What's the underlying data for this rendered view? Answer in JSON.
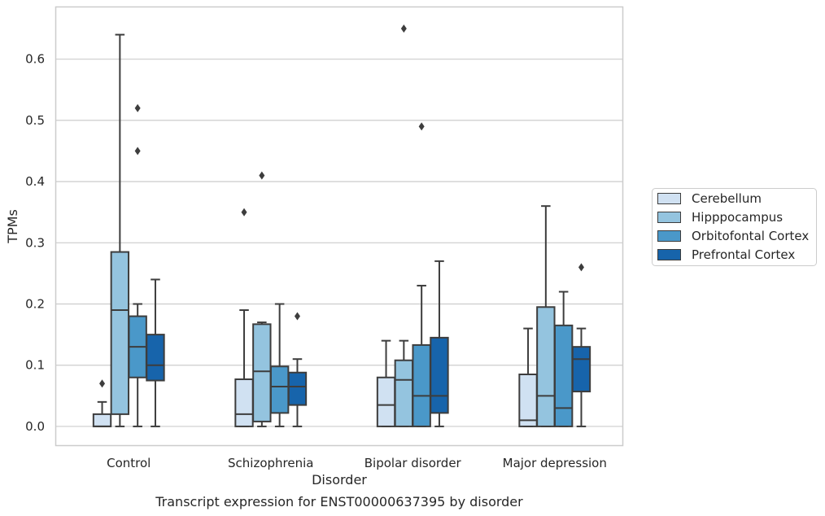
{
  "chart_data": {
    "type": "boxplot",
    "caption": "Transcript expression for ENST00000637395 by disorder",
    "xlabel": "Disorder",
    "ylabel": "TPMs",
    "ylim": [
      -0.032,
      0.686
    ],
    "yticks": [
      0.0,
      0.1,
      0.2,
      0.3,
      0.4,
      0.5,
      0.6
    ],
    "grid": "horizontal",
    "legend_position": "right",
    "categories": [
      "Control",
      "Schizophrenia",
      "Bipolar disorder",
      "Major depression"
    ],
    "series": [
      {
        "name": "Cerebellum",
        "color": "#d0e1f2",
        "boxes": [
          {
            "whisker_low": 0.0,
            "q1": 0.0,
            "median": 0.0,
            "q3": 0.02,
            "whisker_high": 0.04,
            "outliers": [
              0.07
            ]
          },
          {
            "whisker_low": 0.0,
            "q1": 0.0,
            "median": 0.02,
            "q3": 0.077,
            "whisker_high": 0.19,
            "outliers": [
              0.35
            ]
          },
          {
            "whisker_low": 0.0,
            "q1": 0.0,
            "median": 0.035,
            "q3": 0.08,
            "whisker_high": 0.14,
            "outliers": []
          },
          {
            "whisker_low": 0.0,
            "q1": 0.0,
            "median": 0.01,
            "q3": 0.085,
            "whisker_high": 0.16,
            "outliers": []
          }
        ]
      },
      {
        "name": "Hipppocampus",
        "color": "#94c4df",
        "boxes": [
          {
            "whisker_low": 0.0,
            "q1": 0.02,
            "median": 0.19,
            "q3": 0.285,
            "whisker_high": 0.64,
            "outliers": []
          },
          {
            "whisker_low": 0.0,
            "q1": 0.008,
            "median": 0.09,
            "q3": 0.167,
            "whisker_high": 0.17,
            "outliers": [
              0.41
            ]
          },
          {
            "whisker_low": 0.0,
            "q1": 0.0,
            "median": 0.076,
            "q3": 0.108,
            "whisker_high": 0.14,
            "outliers": [
              0.65
            ]
          },
          {
            "whisker_low": 0.0,
            "q1": 0.0,
            "median": 0.05,
            "q3": 0.195,
            "whisker_high": 0.36,
            "outliers": []
          }
        ]
      },
      {
        "name": "Orbitofontal Cortex",
        "color": "#4a98c9",
        "boxes": [
          {
            "whisker_low": 0.0,
            "q1": 0.08,
            "median": 0.13,
            "q3": 0.18,
            "whisker_high": 0.2,
            "outliers": [
              0.45,
              0.52
            ]
          },
          {
            "whisker_low": 0.0,
            "q1": 0.022,
            "median": 0.065,
            "q3": 0.098,
            "whisker_high": 0.2,
            "outliers": []
          },
          {
            "whisker_low": 0.0,
            "q1": 0.0,
            "median": 0.05,
            "q3": 0.133,
            "whisker_high": 0.23,
            "outliers": [
              0.49
            ]
          },
          {
            "whisker_low": 0.0,
            "q1": 0.0,
            "median": 0.03,
            "q3": 0.165,
            "whisker_high": 0.22,
            "outliers": []
          }
        ]
      },
      {
        "name": "Prefrontal Cortex",
        "color": "#1764ab",
        "boxes": [
          {
            "whisker_low": 0.0,
            "q1": 0.075,
            "median": 0.1,
            "q3": 0.15,
            "whisker_high": 0.24,
            "outliers": []
          },
          {
            "whisker_low": 0.0,
            "q1": 0.035,
            "median": 0.065,
            "q3": 0.088,
            "whisker_high": 0.11,
            "outliers": [
              0.18
            ]
          },
          {
            "whisker_low": 0.0,
            "q1": 0.022,
            "median": 0.05,
            "q3": 0.145,
            "whisker_high": 0.27,
            "outliers": []
          },
          {
            "whisker_low": 0.0,
            "q1": 0.057,
            "median": 0.11,
            "q3": 0.13,
            "whisker_high": 0.16,
            "outliers": [
              0.26
            ]
          }
        ]
      }
    ]
  }
}
